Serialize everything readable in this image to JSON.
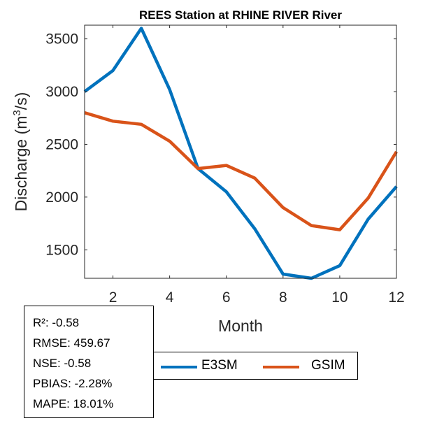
{
  "chart_data": {
    "type": "line",
    "title": "REES  Station at  RHINE RIVER  River",
    "xlabel": "Month",
    "ylabel": "Discharge (m",
    "ylabel_sup": "3",
    "ylabel_end": "/s)",
    "xlim": [
      1,
      12
    ],
    "ylim": [
      1230,
      3630
    ],
    "xticks": [
      2,
      4,
      6,
      8,
      10,
      12
    ],
    "yticks": [
      1500,
      2000,
      2500,
      3000,
      3500
    ],
    "x": [
      1,
      2,
      3,
      4,
      5,
      6,
      7,
      8,
      9,
      10,
      11,
      12
    ],
    "series": [
      {
        "name": "E3SM",
        "color": "#0072BD",
        "values": [
          3000,
          3200,
          3600,
          3020,
          2270,
          2050,
          1700,
          1270,
          1230,
          1350,
          1790,
          2100
        ]
      },
      {
        "name": "GSIM",
        "color": "#D95319",
        "values": [
          2800,
          2720,
          2690,
          2530,
          2270,
          2300,
          2180,
          1900,
          1730,
          1690,
          1990,
          2430
        ]
      }
    ],
    "grid": false,
    "legend_position": "bottom"
  },
  "stats": {
    "r2": "R²: -0.58",
    "rmse": "RMSE: 459.67",
    "nse": "NSE: -0.58",
    "pbias": "PBIAS: -2.28%",
    "mape": "MAPE: 18.01%"
  },
  "legend": {
    "e3sm_label": "E3SM",
    "gsim_label": "GSIM"
  }
}
